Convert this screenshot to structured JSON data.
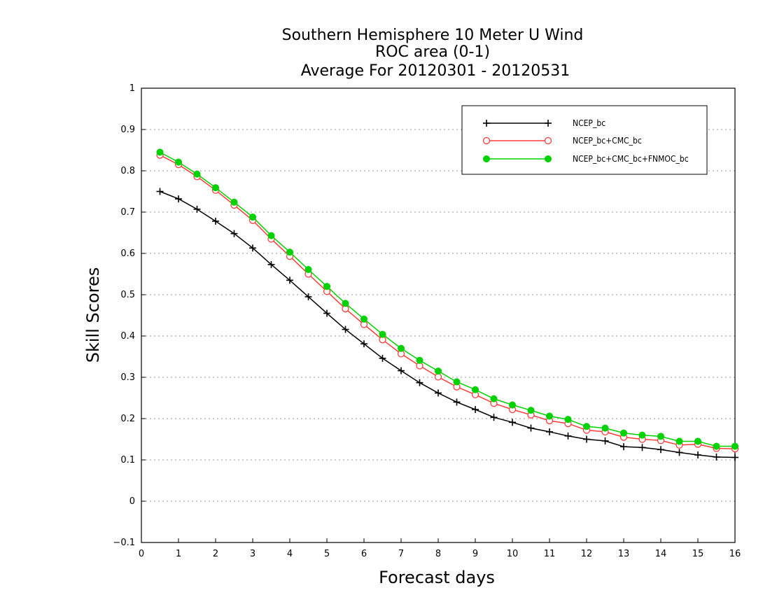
{
  "chart_data": {
    "type": "line",
    "title_lines": [
      "Southern Hemisphere 10 Meter U Wind",
      "ROC area (0-1)",
      "Average For 20120301 - 20120531"
    ],
    "xlabel": "Forecast days",
    "ylabel": "Skill Scores",
    "xlim": [
      0,
      16
    ],
    "ylim": [
      -0.1,
      1
    ],
    "xticks": [
      0,
      1,
      2,
      3,
      4,
      5,
      6,
      7,
      8,
      9,
      10,
      11,
      12,
      13,
      14,
      15,
      16
    ],
    "xtick_labels": [
      "0",
      "1",
      "2",
      "3",
      "4",
      "5",
      "6",
      "7",
      "8",
      "9",
      "10",
      "11",
      "12",
      "13",
      "14",
      "15",
      "16"
    ],
    "yticks": [
      -0.1,
      0,
      0.1,
      0.2,
      0.3,
      0.4,
      0.5,
      0.6,
      0.7,
      0.8,
      0.9,
      1
    ],
    "ytick_labels": [
      "−0.1",
      "0",
      "0.1",
      "0.2",
      "0.3",
      "0.4",
      "0.5",
      "0.6",
      "0.7",
      "0.8",
      "0.9",
      "1"
    ],
    "grid": "horizontal dotted",
    "legend_position": "top-right",
    "x": [
      0.5,
      1,
      1.5,
      2,
      2.5,
      3,
      3.5,
      4,
      4.5,
      5,
      5.5,
      6,
      6.5,
      7,
      7.5,
      8,
      8.5,
      9,
      9.5,
      10,
      10.5,
      11,
      11.5,
      12,
      12.5,
      13,
      13.5,
      14,
      14.5,
      15,
      15.5,
      16
    ],
    "series": [
      {
        "name": "NCEP_bc",
        "color": "#000000",
        "marker": "plus",
        "values": [
          0.75,
          0.732,
          0.707,
          0.678,
          0.648,
          0.613,
          0.573,
          0.535,
          0.495,
          0.455,
          0.416,
          0.381,
          0.346,
          0.316,
          0.287,
          0.262,
          0.24,
          0.222,
          0.203,
          0.191,
          0.177,
          0.168,
          0.158,
          0.15,
          0.146,
          0.132,
          0.13,
          0.125,
          0.118,
          0.112,
          0.107,
          0.106
        ]
      },
      {
        "name": "NCEP_bc+CMC_bc",
        "color": "#ff3c3c",
        "marker": "open-circle",
        "values": [
          0.838,
          0.815,
          0.786,
          0.753,
          0.717,
          0.68,
          0.635,
          0.593,
          0.55,
          0.508,
          0.466,
          0.428,
          0.391,
          0.357,
          0.328,
          0.301,
          0.277,
          0.258,
          0.237,
          0.222,
          0.209,
          0.195,
          0.188,
          0.172,
          0.168,
          0.155,
          0.15,
          0.147,
          0.136,
          0.138,
          0.128,
          0.127
        ]
      },
      {
        "name": "NCEP_bc+CMC_bc+FNMOC_bc",
        "color": "#00d200",
        "marker": "filled-circle",
        "values": [
          0.845,
          0.821,
          0.792,
          0.759,
          0.724,
          0.688,
          0.643,
          0.603,
          0.561,
          0.52,
          0.479,
          0.441,
          0.404,
          0.37,
          0.341,
          0.315,
          0.289,
          0.27,
          0.248,
          0.233,
          0.22,
          0.206,
          0.198,
          0.181,
          0.177,
          0.165,
          0.16,
          0.157,
          0.145,
          0.145,
          0.133,
          0.133
        ]
      }
    ]
  }
}
